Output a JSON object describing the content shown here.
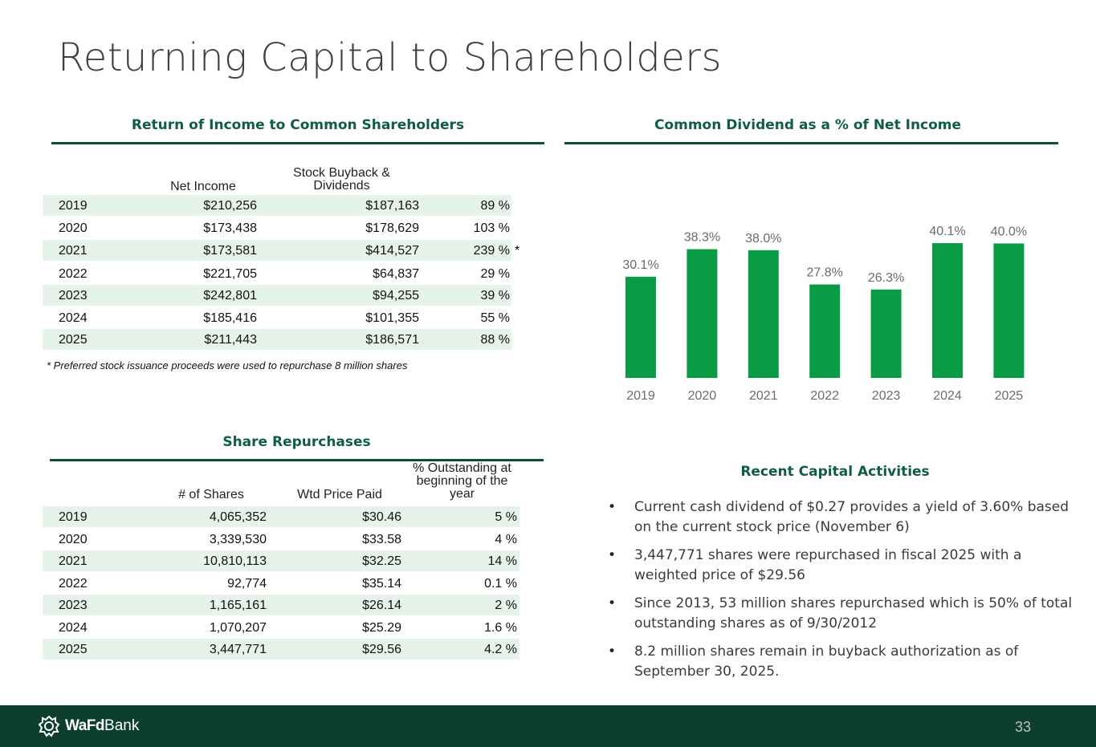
{
  "page": {
    "title": "Returning Capital to Shareholders",
    "page_number": "33"
  },
  "income_table": {
    "heading": "Return of Income to Common Shareholders",
    "col_net_income": "Net Income",
    "col_buyback": "Stock Buyback & Dividends",
    "rows": [
      {
        "year": "2019",
        "net_income": "$210,256",
        "buyback": "$187,163",
        "pct": "89 %",
        "mark": ""
      },
      {
        "year": "2020",
        "net_income": "$173,438",
        "buyback": "$178,629",
        "pct": "103 %",
        "mark": ""
      },
      {
        "year": "2021",
        "net_income": "$173,581",
        "buyback": "$414,527",
        "pct": "239 %",
        "mark": "*"
      },
      {
        "year": "2022",
        "net_income": "$221,705",
        "buyback": "$64,837",
        "pct": "29 %",
        "mark": ""
      },
      {
        "year": "2023",
        "net_income": "$242,801",
        "buyback": "$94,255",
        "pct": "39 %",
        "mark": ""
      },
      {
        "year": "2024",
        "net_income": "$185,416",
        "buyback": "$101,355",
        "pct": "55 %",
        "mark": ""
      },
      {
        "year": "2025",
        "net_income": "$211,443",
        "buyback": "$186,571",
        "pct": "88 %",
        "mark": ""
      }
    ],
    "footnote": "* Preferred stock issuance proceeds were used to repurchase 8 million shares"
  },
  "repurchase_table": {
    "heading": "Share Repurchases",
    "col_shares": "# of Shares",
    "col_price": "Wtd Price Paid",
    "col_outstanding": "% Outstanding at beginning of the year",
    "rows": [
      {
        "year": "2019",
        "shares": "4,065,352",
        "price": "$30.46",
        "pct": "5 %"
      },
      {
        "year": "2020",
        "shares": "3,339,530",
        "price": "$33.58",
        "pct": "4 %"
      },
      {
        "year": "2021",
        "shares": "10,810,113",
        "price": "$32.25",
        "pct": "14 %"
      },
      {
        "year": "2022",
        "shares": "92,774",
        "price": "$35.14",
        "pct": "0.1 %"
      },
      {
        "year": "2023",
        "shares": "1,165,161",
        "price": "$26.14",
        "pct": "2 %"
      },
      {
        "year": "2024",
        "shares": "1,070,207",
        "price": "$25.29",
        "pct": "1.6 %"
      },
      {
        "year": "2025",
        "shares": "3,447,771",
        "price": "$29.56",
        "pct": "4.2 %"
      }
    ]
  },
  "chart_heading": "Common Dividend as a % of Net Income",
  "chart_data": {
    "type": "bar",
    "title": "Common Dividend as a % of Net Income",
    "categories": [
      "2019",
      "2020",
      "2021",
      "2022",
      "2023",
      "2024",
      "2025"
    ],
    "values": [
      30.1,
      38.3,
      38.0,
      27.8,
      26.3,
      40.1,
      40.0
    ],
    "labels": [
      "30.1%",
      "38.3%",
      "38.0%",
      "27.8%",
      "26.3%",
      "40.1%",
      "40.0%"
    ],
    "ylim": [
      0,
      40.1
    ],
    "xlabel": "",
    "ylabel": "",
    "bar_color": "#0a9b45",
    "label_color": "#6b6b6b"
  },
  "activities": {
    "heading": "Recent Capital Activities",
    "bullet_char": "•",
    "items": [
      "Current cash dividend of $0.27 provides a yield of 3.60% based on the current stock price (November 6)",
      "3,447,771 shares were repurchased in fiscal 2025 with a weighted price of $29.56",
      "Since 2013, 53 million shares repurchased which is 50% of total outstanding shares as of 9/30/2012",
      "8.2 million shares remain in buyback authorization as of September 30, 2025."
    ]
  },
  "footer": {
    "logo_bold": "WaFd",
    "logo_light": "Bank",
    "logo_icon": "wafd-knot-icon"
  }
}
